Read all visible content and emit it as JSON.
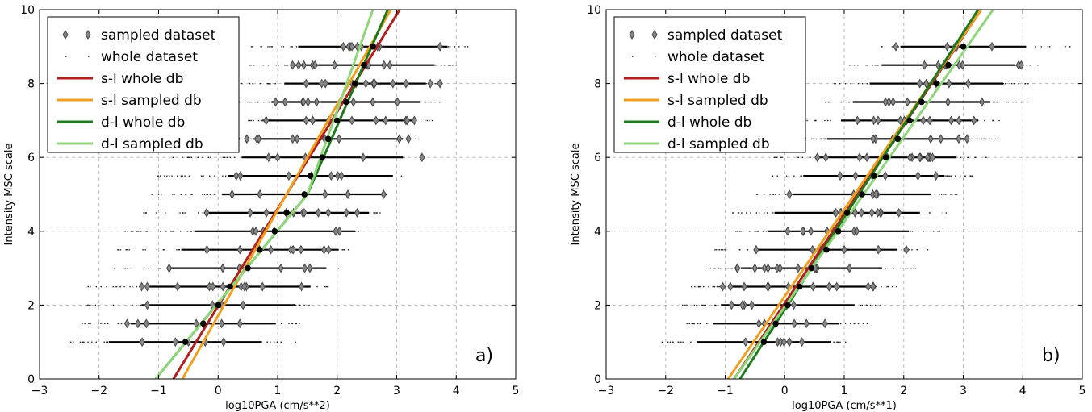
{
  "chart_data": [
    {
      "type": "scatter",
      "panel_label": "a)",
      "xlabel": "log10PGA (cm/s**2)",
      "ylabel": "Intensity MSC scale",
      "xlim": [
        -3,
        5
      ],
      "ylim": [
        0,
        10
      ],
      "xticks": [
        "−3",
        "−2",
        "−1",
        "0",
        "1",
        "2",
        "3",
        "4",
        "5"
      ],
      "yticks": [
        "0",
        "2",
        "4",
        "6",
        "8",
        "10"
      ],
      "grid": true,
      "legend_position": "top-left",
      "legend": [
        "sampled dataset",
        "whole dataset",
        "s-l whole db",
        "s-l sampled db",
        "d-l whole db",
        "d-l sampled db"
      ],
      "intensity_levels": [
        1,
        1.5,
        2,
        2.5,
        3,
        3.5,
        4,
        4.5,
        5,
        5.5,
        6,
        6.5,
        7,
        7.5,
        8,
        8.5,
        9
      ],
      "whole_dataset_ranges": [
        [
          -2.6,
          1.3
        ],
        [
          -2.3,
          1.4
        ],
        [
          -2.3,
          1.6
        ],
        [
          -2.2,
          1.9
        ],
        [
          -1.9,
          2.1
        ],
        [
          -1.7,
          2.3
        ],
        [
          -1.6,
          2.5
        ],
        [
          -1.4,
          2.8
        ],
        [
          -1.3,
          2.9
        ],
        [
          -1.1,
          3.1
        ],
        [
          -0.8,
          3.3
        ],
        [
          -0.4,
          3.4
        ],
        [
          -0.2,
          3.6
        ],
        [
          0,
          3.8
        ],
        [
          0.2,
          3.8
        ],
        [
          0.4,
          4.0
        ],
        [
          0.5,
          4.3
        ]
      ],
      "means": [
        -0.55,
        -0.25,
        0.0,
        0.2,
        0.5,
        0.7,
        0.95,
        1.15,
        1.45,
        1.55,
        1.75,
        1.85,
        2.0,
        2.15,
        2.3,
        2.45,
        2.6
      ],
      "series": [
        {
          "name": "s-l whole db",
          "color": "#b01e1e",
          "x": [
            -0.75,
            3.05
          ],
          "y": [
            0,
            10
          ]
        },
        {
          "name": "s-l sampled db",
          "color": "#f0a020",
          "x": [
            -0.6,
            2.9
          ],
          "y": [
            0,
            10
          ]
        },
        {
          "name": "d-l whole db",
          "color": "#1f7a1f",
          "x": [
            -1.05,
            1.5,
            2.85
          ],
          "y": [
            0,
            5,
            10
          ]
        },
        {
          "name": "d-l sampled db",
          "color": "#8fd67a",
          "x": [
            -1.05,
            1.5,
            2.6
          ],
          "y": [
            0,
            5,
            10
          ]
        }
      ]
    },
    {
      "type": "scatter",
      "panel_label": "b)",
      "xlabel": "log10PGA (cm/s**1)",
      "ylabel": "Intensity MSC scale",
      "xlim": [
        -3,
        5
      ],
      "ylim": [
        0,
        10
      ],
      "xticks": [
        "−3",
        "−2",
        "−1",
        "0",
        "1",
        "2",
        "3",
        "4",
        "5"
      ],
      "yticks": [
        "0",
        "2",
        "4",
        "6",
        "8",
        "10"
      ],
      "grid": true,
      "legend_position": "top-left",
      "legend": [
        "sampled dataset",
        "whole dataset",
        "s-l whole db",
        "s-l sampled db",
        "d-l whole db",
        "d-l sampled db"
      ],
      "intensity_levels": [
        1,
        1.5,
        2,
        2.5,
        3,
        3.5,
        4,
        4.5,
        5,
        5.5,
        6,
        6.5,
        7,
        7.5,
        8,
        8.5,
        9
      ],
      "whole_dataset_ranges": [
        [
          -2.1,
          1.3
        ],
        [
          -1.8,
          1.4
        ],
        [
          -1.8,
          1.6
        ],
        [
          -1.6,
          1.9
        ],
        [
          -1.4,
          2.2
        ],
        [
          -1.2,
          2.4
        ],
        [
          -1.0,
          2.6
        ],
        [
          -0.9,
          2.8
        ],
        [
          -0.6,
          2.9
        ],
        [
          -0.4,
          3.2
        ],
        [
          -0.2,
          3.4
        ],
        [
          0,
          3.6
        ],
        [
          0.3,
          3.8
        ],
        [
          0.6,
          4.1
        ],
        [
          0.8,
          4.2
        ],
        [
          1.0,
          4.4
        ],
        [
          1.6,
          4.8
        ]
      ],
      "means": [
        -0.35,
        -0.15,
        0.05,
        0.25,
        0.45,
        0.7,
        0.9,
        1.05,
        1.3,
        1.5,
        1.7,
        1.9,
        2.1,
        2.3,
        2.55,
        2.75,
        3.0
      ],
      "series": [
        {
          "name": "s-l whole db",
          "color": "#b01e1e",
          "x": [
            -0.85,
            3.3
          ],
          "y": [
            0,
            10
          ]
        },
        {
          "name": "s-l sampled db",
          "color": "#f0a020",
          "x": [
            -0.95,
            3.3
          ],
          "y": [
            0,
            10
          ]
        },
        {
          "name": "d-l whole db",
          "color": "#1f7a1f",
          "x": [
            -0.75,
            3.25
          ],
          "y": [
            0,
            10
          ]
        },
        {
          "name": "d-l sampled db",
          "color": "#8fd67a",
          "x": [
            -0.85,
            3.5
          ],
          "y": [
            0,
            10
          ]
        }
      ]
    }
  ]
}
